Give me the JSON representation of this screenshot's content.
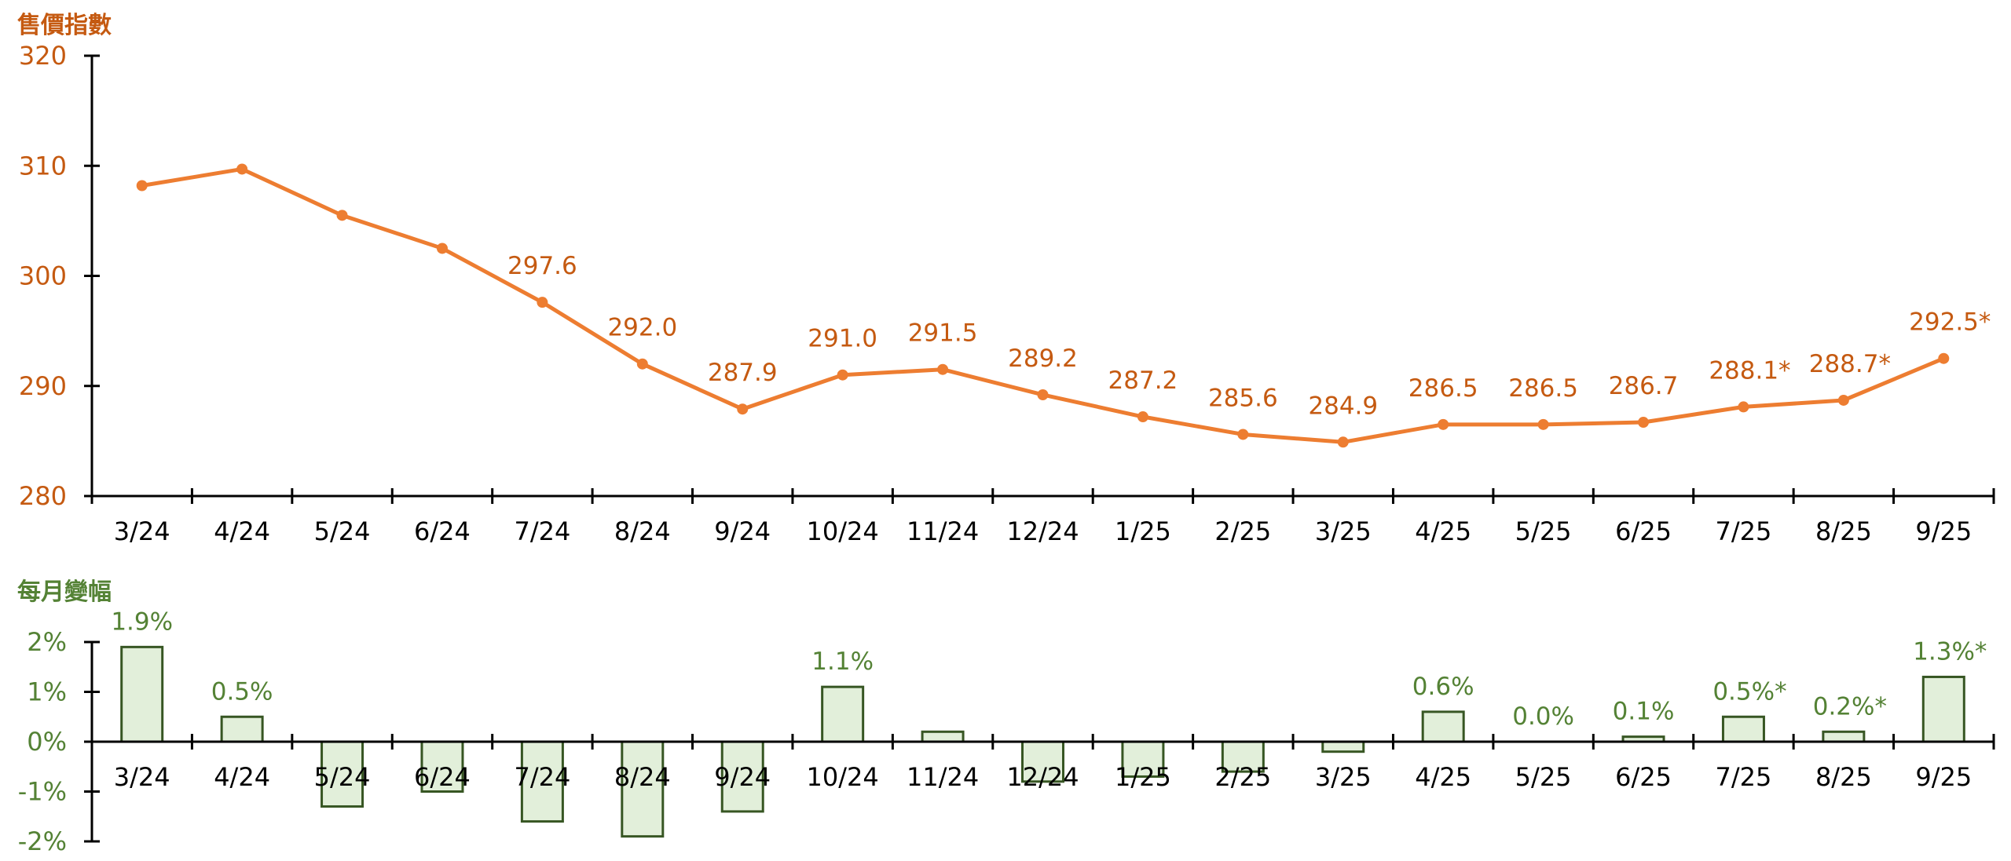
{
  "colors": {
    "line": "#ED7D31",
    "line_label": "#C55A11",
    "bar_fill": "#E2EFDA",
    "bar_stroke": "#375623",
    "bar_label": "#548235",
    "axis": "#000000"
  },
  "chart_data": [
    {
      "type": "line",
      "title": "售價指數",
      "ylabel": "售價指數",
      "xlabel": "",
      "ylim": [
        280,
        320
      ],
      "yticks": [
        "320",
        "310",
        "300",
        "290",
        "280"
      ],
      "ytick_values": [
        320,
        310,
        300,
        290,
        280
      ],
      "grid": false,
      "categories": [
        "3/24",
        "4/24",
        "5/24",
        "6/24",
        "7/24",
        "8/24",
        "9/24",
        "10/24",
        "11/24",
        "12/24",
        "1/25",
        "2/25",
        "3/25",
        "4/25",
        "5/25",
        "6/25",
        "7/25",
        "8/25",
        "9/25"
      ],
      "values": [
        308.2,
        309.7,
        305.5,
        302.5,
        297.6,
        292.0,
        287.9,
        291.0,
        291.5,
        289.2,
        287.2,
        285.6,
        284.9,
        286.5,
        286.5,
        286.7,
        288.1,
        288.7,
        292.5
      ],
      "data_labels": [
        "",
        "",
        "",
        "",
        "297.6",
        "292.0",
        "287.9",
        "291.0",
        "291.5",
        "289.2",
        "287.2",
        "285.6",
        "284.9",
        "286.5",
        "286.5",
        "286.7",
        "288.1*",
        "288.7*",
        "292.5*"
      ]
    },
    {
      "type": "bar",
      "title": "每月變幅",
      "ylabel": "每月變幅",
      "xlabel": "",
      "ylim": [
        -2,
        2
      ],
      "yticks": [
        "2%",
        "1%",
        "0%",
        "-1%",
        "-2%"
      ],
      "ytick_values": [
        2,
        1,
        0,
        -1,
        -2
      ],
      "grid": false,
      "categories": [
        "3/24",
        "4/24",
        "5/24",
        "6/24",
        "7/24",
        "8/24",
        "9/24",
        "10/24",
        "11/24",
        "12/24",
        "1/25",
        "2/25",
        "3/25",
        "4/25",
        "5/25",
        "6/25",
        "7/25",
        "8/25",
        "9/25"
      ],
      "values": [
        1.9,
        0.5,
        -1.3,
        -1.0,
        -1.6,
        -1.9,
        -1.4,
        1.1,
        0.2,
        -0.8,
        -0.7,
        -0.6,
        -0.2,
        0.6,
        0.0,
        0.1,
        0.5,
        0.2,
        1.3
      ],
      "data_labels": [
        "1.9%",
        "0.5%",
        "",
        "",
        "",
        "",
        "",
        "1.1%",
        "",
        "",
        "",
        "",
        "",
        "0.6%",
        "0.0%",
        "0.1%",
        "0.5%*",
        "0.2%*",
        "1.3%*"
      ]
    }
  ]
}
